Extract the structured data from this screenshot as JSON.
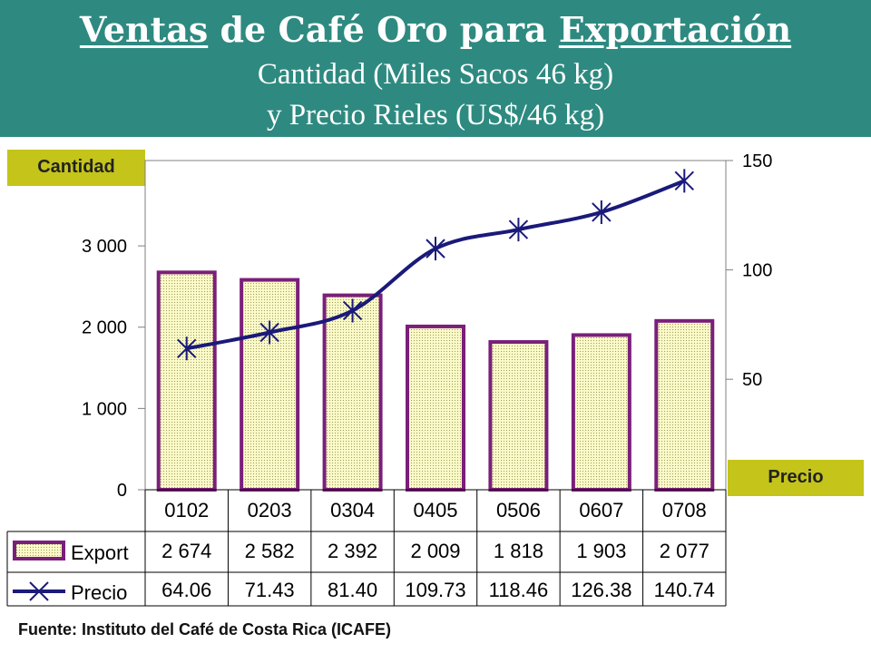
{
  "header": {
    "title_w1": "Ventas",
    "title_w2": " de Café Oro para ",
    "title_w3": "Exportación",
    "subtitle_1": "Cantidad (Miles Sacos 46 kg)",
    "subtitle_2": "y Precio Rieles (US$/46 kg)"
  },
  "badges": {
    "left": "Cantidad",
    "right": "Precio"
  },
  "source": "Fuente: Instituto del Café de Costa Rica (ICAFE)",
  "colors": {
    "header_bg": "#2e8a80",
    "bar_fill": "#fafac8",
    "bar_border": "#7a1f7a",
    "line": "#1a1a7a",
    "badge": "#c4c41a"
  },
  "chart_data": {
    "type": "bar",
    "categories": [
      "0102",
      "0203",
      "0304",
      "0405",
      "0506",
      "0607",
      "0708"
    ],
    "series": [
      {
        "name": "Export",
        "type": "bar",
        "axis": "left",
        "values": [
          2674,
          2582,
          2392,
          2009,
          1818,
          1903,
          2077
        ],
        "labels": [
          "2 674",
          "2 582",
          "2 392",
          "2 009",
          "1 818",
          "1 903",
          "2 077"
        ]
      },
      {
        "name": "Precio",
        "type": "line",
        "axis": "right",
        "values": [
          64.06,
          71.43,
          81.4,
          109.73,
          118.46,
          126.38,
          140.74
        ],
        "labels": [
          "64.06",
          "71.43",
          "81.40",
          "109.73",
          "118.46",
          "126.38",
          "140.74"
        ]
      }
    ],
    "y_left": {
      "ticks": [
        0,
        1000,
        2000,
        3000
      ],
      "tick_labels": [
        "0",
        "1 000",
        "2 000",
        "3 000"
      ],
      "ylim": [
        0,
        4050
      ]
    },
    "y_right": {
      "ticks": [
        50,
        100,
        150
      ],
      "tick_labels": [
        "50",
        "100",
        "150"
      ],
      "ylim": [
        -0.5,
        150
      ]
    },
    "grid": false,
    "legend": "data-table"
  }
}
